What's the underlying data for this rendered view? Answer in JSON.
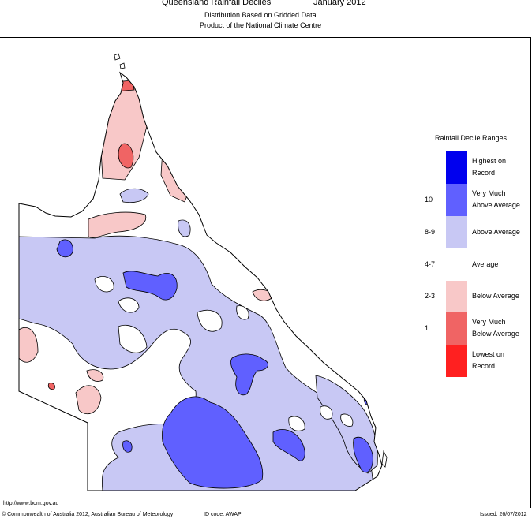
{
  "header": {
    "title": "Queensland Rainfall Deciles",
    "period": "January 2012",
    "subtitle1": "Distribution Based on Gridded Data",
    "subtitle2": "Product of the National Climate Centre"
  },
  "legend": {
    "title": "Rainfall Decile Ranges",
    "items": [
      {
        "range": "",
        "line1": "Highest on",
        "line2": "Record",
        "color": "#0000ee"
      },
      {
        "range": "10",
        "line1": "Very Much",
        "line2": "Above Average",
        "color": "#6060ff"
      },
      {
        "range": "8-9",
        "line1": "Above Average",
        "line2": "",
        "color": "#c8c8f4"
      },
      {
        "range": "4-7",
        "line1": "Average",
        "line2": "",
        "color": "#ffffff"
      },
      {
        "range": "2-3",
        "line1": "Below Average",
        "line2": "",
        "color": "#f8c8c8"
      },
      {
        "range": "1",
        "line1": "Very Much",
        "line2": "Below Average",
        "color": "#f06464"
      },
      {
        "range": "",
        "line1": "Lowest on",
        "line2": "Record",
        "color": "#ff2020"
      }
    ]
  },
  "footer": {
    "url": "http://www.bom.gov.au",
    "copyright": "© Commonwealth of Australia 2012, Australian Bureau of Meteorology",
    "id_code": "ID code: AWAP",
    "issued": "Issued: 26/07/2012"
  },
  "colors": {
    "above": "#c8c8f4",
    "very_much_above": "#6060ff",
    "below": "#f8c8c8",
    "very_much_below": "#f06464",
    "outline": "#000000"
  }
}
